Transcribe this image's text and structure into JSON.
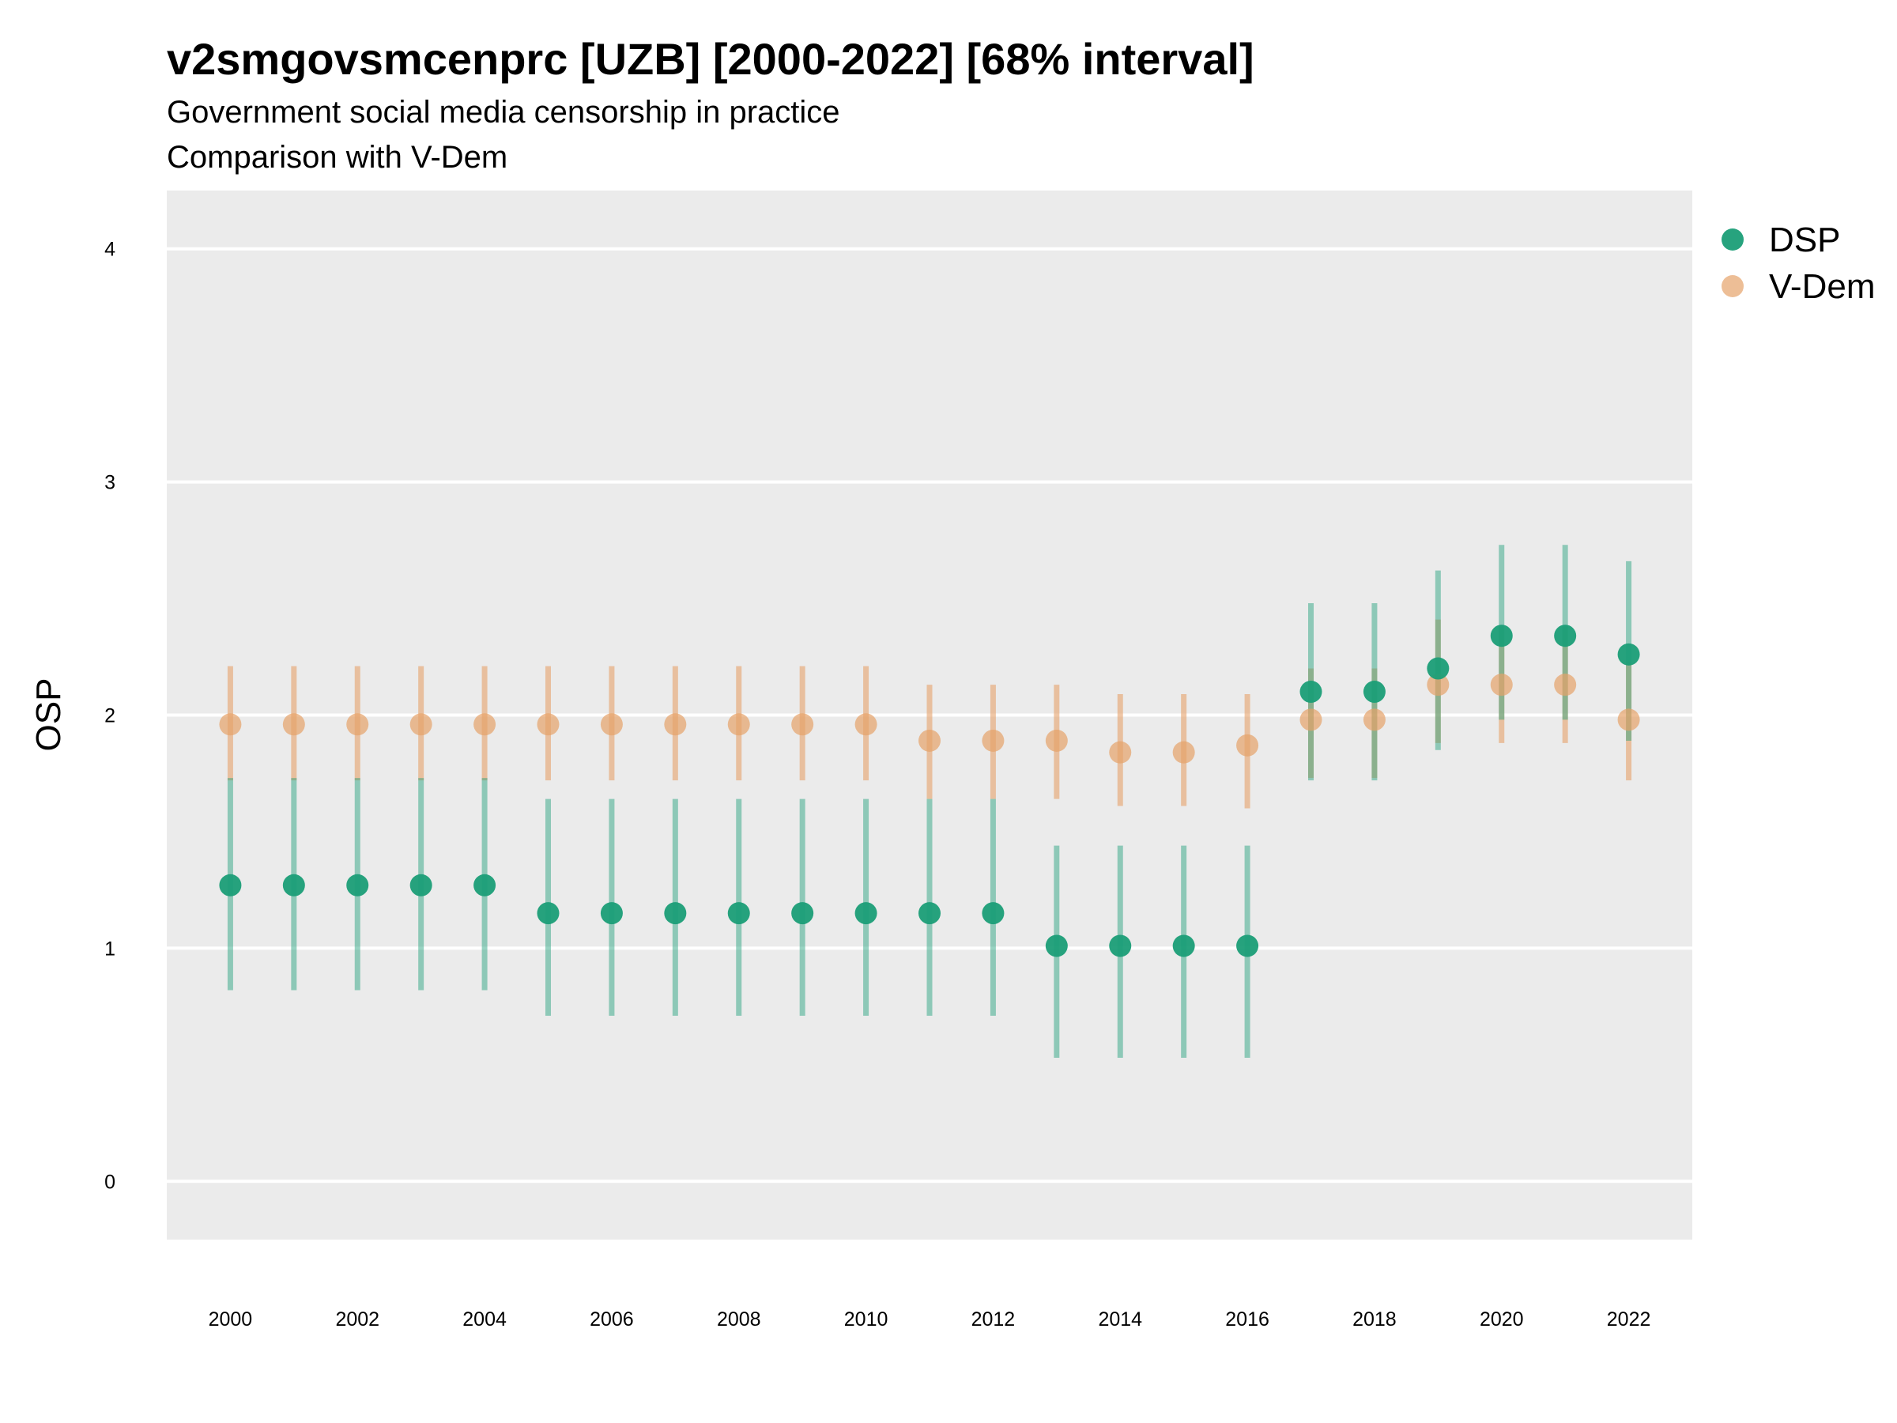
{
  "chart_data": {
    "type": "scatter",
    "title": "v2smgovsmcenprc [UZB] [2000-2022] [68% interval]",
    "subtitle": "Government social media censorship in practice",
    "subtitle2": "Comparison with V-Dem",
    "ylabel": "OSP",
    "xlabel": "",
    "ylim": [
      -0.25,
      4.25
    ],
    "xlim": [
      1999,
      2023
    ],
    "y_ticks": [
      "0",
      "1",
      "2",
      "3",
      "4"
    ],
    "x_ticks": [
      "2000",
      "2002",
      "2004",
      "2006",
      "2008",
      "2010",
      "2012",
      "2014",
      "2016",
      "2018",
      "2020",
      "2022"
    ],
    "grid": true,
    "legend": {
      "placement": "top-right",
      "entries": [
        "DSP",
        "V-Dem"
      ]
    },
    "colors": {
      "DSP": "#1b9e77",
      "V-Dem": "#e6a26a",
      "panel": "#ebebeb",
      "grid": "#ffffff"
    },
    "x": [
      2000,
      2001,
      2002,
      2003,
      2004,
      2005,
      2006,
      2007,
      2008,
      2009,
      2010,
      2011,
      2012,
      2013,
      2014,
      2015,
      2016,
      2017,
      2018,
      2019,
      2020,
      2021,
      2022
    ],
    "series": [
      {
        "name": "DSP",
        "values": [
          1.27,
          1.27,
          1.27,
          1.27,
          1.27,
          1.15,
          1.15,
          1.15,
          1.15,
          1.15,
          1.15,
          1.15,
          1.15,
          1.01,
          1.01,
          1.01,
          1.01,
          2.1,
          2.1,
          2.2,
          2.34,
          2.34,
          2.26
        ],
        "lower": [
          0.82,
          0.82,
          0.82,
          0.82,
          0.82,
          0.71,
          0.71,
          0.71,
          0.71,
          0.71,
          0.71,
          0.71,
          0.71,
          0.53,
          0.53,
          0.53,
          0.53,
          1.72,
          1.72,
          1.85,
          1.98,
          1.98,
          1.89
        ],
        "upper": [
          1.73,
          1.73,
          1.73,
          1.73,
          1.73,
          1.64,
          1.64,
          1.64,
          1.64,
          1.64,
          1.64,
          1.64,
          1.64,
          1.44,
          1.44,
          1.44,
          1.44,
          2.48,
          2.48,
          2.62,
          2.73,
          2.73,
          2.66
        ]
      },
      {
        "name": "V-Dem",
        "values": [
          1.96,
          1.96,
          1.96,
          1.96,
          1.96,
          1.96,
          1.96,
          1.96,
          1.96,
          1.96,
          1.96,
          1.89,
          1.89,
          1.89,
          1.84,
          1.84,
          1.87,
          1.98,
          1.98,
          2.13,
          2.13,
          2.13,
          1.98
        ],
        "lower": [
          1.72,
          1.72,
          1.72,
          1.72,
          1.72,
          1.72,
          1.72,
          1.72,
          1.72,
          1.72,
          1.72,
          1.64,
          1.64,
          1.64,
          1.61,
          1.61,
          1.6,
          1.73,
          1.73,
          1.88,
          1.88,
          1.88,
          1.72
        ],
        "upper": [
          2.21,
          2.21,
          2.21,
          2.21,
          2.21,
          2.21,
          2.21,
          2.21,
          2.21,
          2.21,
          2.21,
          2.13,
          2.13,
          2.13,
          2.09,
          2.09,
          2.09,
          2.2,
          2.2,
          2.41,
          2.38,
          2.38,
          2.23
        ]
      }
    ]
  }
}
